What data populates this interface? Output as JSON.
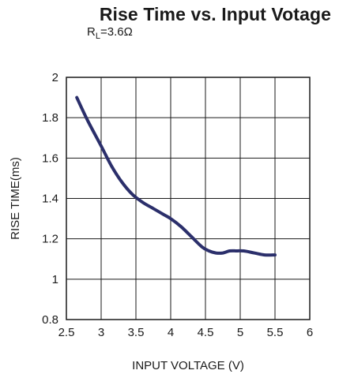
{
  "chart_data": {
    "type": "line",
    "title": "Rise Time vs. Input Votage",
    "subtitle": {
      "main": "R",
      "sub": "L",
      "rest": "=3.6Ω"
    },
    "xlabel": "INPUT VOLTAGE (V)",
    "ylabel": "RISE TIME(ms)",
    "xlim": [
      2.5,
      6
    ],
    "ylim": [
      0.8,
      2
    ],
    "xticks": [
      2.5,
      3,
      3.5,
      4,
      4.5,
      5,
      5.5,
      6
    ],
    "xtick_labels": [
      "2.5",
      "3",
      "3.5",
      "4",
      "4.5",
      "5",
      "5.5",
      "6"
    ],
    "yticks": [
      0.8,
      1,
      1.2,
      1.4,
      1.6,
      1.8,
      2
    ],
    "ytick_labels": [
      "0.8",
      "1",
      "1.2",
      "1.4",
      "1.6",
      "1.8",
      "2"
    ],
    "grid": true,
    "series": [
      {
        "color": "#2b2f6b",
        "x": [
          2.65,
          2.8,
          3.0,
          3.15,
          3.3,
          3.45,
          3.6,
          3.75,
          3.9,
          4.0,
          4.15,
          4.3,
          4.45,
          4.55,
          4.65,
          4.75,
          4.85,
          4.95,
          5.05,
          5.2,
          5.35,
          5.5
        ],
        "y": [
          1.9,
          1.79,
          1.66,
          1.56,
          1.48,
          1.42,
          1.38,
          1.35,
          1.32,
          1.3,
          1.26,
          1.21,
          1.16,
          1.14,
          1.13,
          1.13,
          1.14,
          1.14,
          1.14,
          1.13,
          1.12,
          1.12
        ]
      }
    ]
  }
}
